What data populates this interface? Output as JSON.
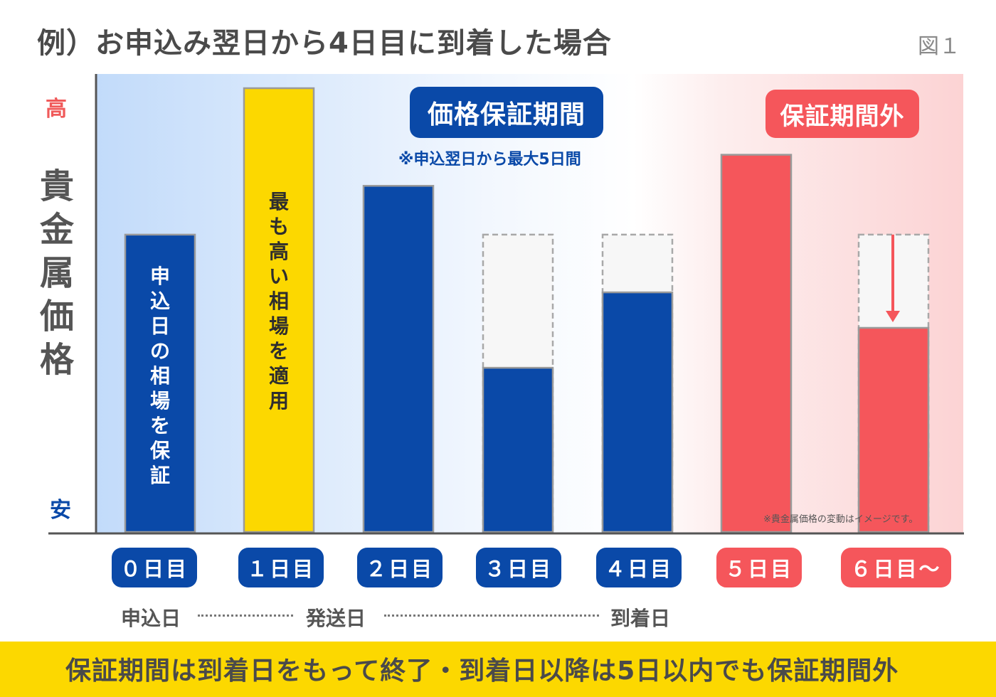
{
  "title": "例）お申込み翌日から4日目に到着した場合",
  "figure_label": "図１",
  "y_axis": {
    "label": "貴金属価格",
    "high_label": "高",
    "low_label": "安"
  },
  "bands": {
    "guarantee": {
      "label": "価格保証期間",
      "note": "※申込翌日から最大5日間"
    },
    "outside": {
      "label": "保証期間外"
    }
  },
  "disclaimer": "※貴金属価格の変動はイメージです。",
  "timeline": {
    "apply": "申込日",
    "ship": "発送日",
    "arrive": "到着日"
  },
  "footer": "保証期間は到着日をもって終了・到着日以降は5日以内でも保証期間外",
  "colors": {
    "blue": "#0a49a8",
    "yellow": "#fcd800",
    "red": "#f5565b",
    "ghost": "#f7f7f7"
  },
  "chart_data": {
    "type": "bar",
    "categories": [
      "０日目",
      "１日目",
      "２日目",
      "３日目",
      "４日目",
      "５日目",
      "６日目〜"
    ],
    "values": [
      67,
      100,
      78,
      37,
      54,
      85,
      46
    ],
    "reference_values": [
      null,
      null,
      null,
      67,
      67,
      null,
      67
    ],
    "bar_colors": [
      "blue",
      "yellow",
      "blue",
      "blue",
      "blue",
      "red",
      "red"
    ],
    "bar_labels": [
      "申込日の相場を保証",
      "最も高い相場を適用",
      "",
      "",
      "",
      "",
      ""
    ],
    "category_colors": [
      "blue",
      "blue",
      "blue",
      "blue",
      "blue",
      "red",
      "red"
    ],
    "decline_arrow_on": "６日目〜",
    "ylim": [
      0,
      100
    ],
    "y_tick_labels": [
      "安",
      "高"
    ],
    "grid": false,
    "legend": "none"
  }
}
